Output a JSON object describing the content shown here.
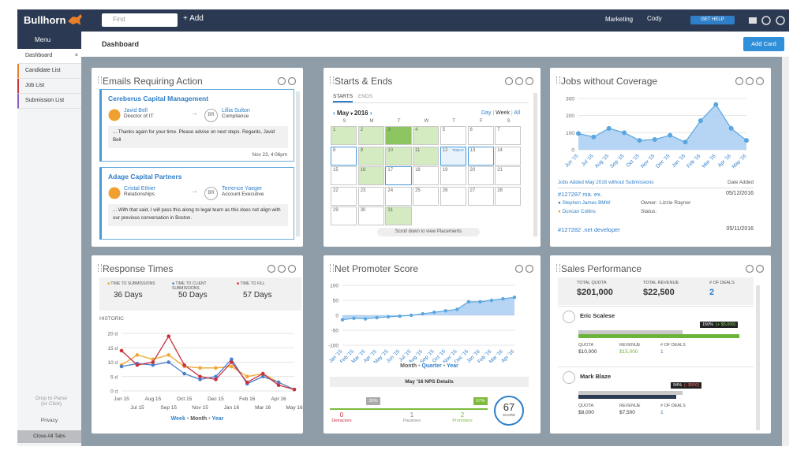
{
  "topbar": {
    "logo": "Bullhorn",
    "search_placeholder": "Find",
    "add": "Add",
    "menu": "Marketing",
    "user": "Cody",
    "help": "GET HELP"
  },
  "sidebar": {
    "menu": "Menu",
    "tabs": [
      "Dashboard",
      "Candidate List",
      "Job List",
      "Submission List"
    ],
    "drop": "Drop to Parse",
    "drop_hint": "(or Click)",
    "privacy": "Privacy",
    "close_tabs": "Close All Tabs"
  },
  "header": {
    "title": "Dashboard",
    "add_card": "Add Card"
  },
  "emails": {
    "title": "Emails Requiring Action",
    "items": [
      {
        "company": "Cereberus Capital Management",
        "from_name": "Javid Bell",
        "from_title": "Director of IT",
        "initials": "BR",
        "to_name": "Lillia Sulton",
        "to_title": "Compliance",
        "message": "... Thanks again for your time. Please advise on next steps. Regards, Javid Bell",
        "date": "Nov 23, 4:06pm"
      },
      {
        "company": "Adage Capital Partners",
        "from_name": "Cristal Ethier",
        "from_title": "Relationships",
        "initials": "BR",
        "to_name": "Terrence Yaeger",
        "to_title": "Account Executive",
        "message": "... With that said, I will pass this along to legal team as this does not align with our previous conversation in Boston."
      }
    ]
  },
  "starts_ends": {
    "title": "Starts & Ends",
    "tabs": [
      "STARTS",
      "ENDS"
    ],
    "month": "May",
    "year": 2016,
    "views": [
      "Day",
      "Week",
      "All"
    ],
    "weekdays": [
      "S",
      "M",
      "T",
      "W",
      "T",
      "F",
      "S"
    ],
    "today_label": "TODAY",
    "days": [
      {
        "day": 1,
        "state": "green"
      },
      {
        "day": 2,
        "state": "green"
      },
      {
        "day": 3,
        "state": "dark"
      },
      {
        "day": 4,
        "state": "green"
      },
      {
        "day": 5,
        "state": "plain"
      },
      {
        "day": 6,
        "state": "plain"
      },
      {
        "day": 7,
        "state": "plain"
      },
      {
        "day": 8,
        "state": "outline"
      },
      {
        "day": 9,
        "state": "green"
      },
      {
        "day": 10,
        "state": "green"
      },
      {
        "day": 11,
        "state": "green"
      },
      {
        "day": 12,
        "state": "today"
      },
      {
        "day": 13,
        "state": "outline"
      },
      {
        "day": 14,
        "state": "plain"
      },
      {
        "day": 15,
        "state": "plain"
      },
      {
        "day": 16,
        "state": "green"
      },
      {
        "day": 17,
        "state": "outline"
      },
      {
        "day": 18,
        "state": "plain"
      },
      {
        "day": 19,
        "state": "plain"
      },
      {
        "day": 20,
        "state": "plain"
      },
      {
        "day": 21,
        "state": "plain"
      },
      {
        "day": 22,
        "state": "plain"
      },
      {
        "day": 23,
        "state": "plain"
      },
      {
        "day": 24,
        "state": "plain"
      },
      {
        "day": 25,
        "state": "plain"
      },
      {
        "day": 26,
        "state": "plain"
      },
      {
        "day": 27,
        "state": "plain"
      },
      {
        "day": 28,
        "state": "plain"
      },
      {
        "day": 29,
        "state": "plain"
      },
      {
        "day": 30,
        "state": "plain"
      },
      {
        "day": 31,
        "state": "green"
      }
    ],
    "footer": "Scroll down to view Placements"
  },
  "jobs": {
    "title": "Jobs without Coverage",
    "chart": {
      "type": "line",
      "categories": [
        "Jun '15",
        "Jul '15",
        "Aug '15",
        "Sep '15",
        "Oct '15",
        "Nov '15",
        "Dec '15",
        "Jan '16",
        "Feb '16",
        "Mar '16",
        "Apr '16",
        "May '16"
      ],
      "values": [
        95,
        75,
        125,
        100,
        55,
        60,
        85,
        45,
        170,
        265,
        125,
        55
      ],
      "color": "#5aa6e0",
      "ylim": [
        0,
        300
      ],
      "yticks": [
        0,
        100,
        200,
        300
      ],
      "grid": true
    },
    "list_title": "Jobs Added May 2016 without Submissions",
    "date_header": "Date Added",
    "jobs": [
      {
        "id": "#127287 ma. ex.",
        "date": "05/12/2016",
        "contacts": [
          "Stephen James BMW",
          "Duncan Collins"
        ],
        "owner_label": "Owner:",
        "owner": "Lizzie Rayner",
        "status_label": "Status:"
      },
      {
        "id": "#127282 .net developer",
        "date": "05/11/2016"
      }
    ]
  },
  "response": {
    "title": "Response Times",
    "historic": "HISTORIC",
    "chart": {
      "type": "line",
      "categories": [
        "Jun 15",
        "Jul 15",
        "Aug 15",
        "Sep 15",
        "Oct 15",
        "Nov 15",
        "Dec 15",
        "Jan 16",
        "Feb 16",
        "Mar 16",
        "Apr 16",
        "May 16"
      ],
      "series": [
        {
          "name": "TIME TO SUBMISSIONS",
          "summary": "36 Days",
          "color": "#f0a830",
          "values": [
            9,
            12.5,
            11,
            12.5,
            8.5,
            8,
            8,
            8.5,
            5,
            6,
            3,
            0.5
          ]
        },
        {
          "name": "TIME TO CLIENT SUBMISSIONS",
          "summary": "50 Days",
          "color": "#4a7fd0",
          "values": [
            8.5,
            9.5,
            9,
            10,
            6,
            4,
            5,
            11,
            2.5,
            5,
            3,
            0.5
          ]
        },
        {
          "name": "TIME TO FILL",
          "summary": "57 Days",
          "color": "#c8323c",
          "values": [
            14,
            9,
            10,
            19,
            9,
            5,
            4,
            10,
            3,
            6,
            2,
            0.5
          ]
        }
      ],
      "ylim": [
        0,
        20
      ],
      "yticks": [
        {
          "value": 0,
          "label": "0 d"
        },
        {
          "value": 5,
          "label": "5 d"
        },
        {
          "value": 10,
          "label": "10 d"
        },
        {
          "value": 15,
          "label": "15 d"
        },
        {
          "value": 20,
          "label": "20 d"
        }
      ],
      "grid": true
    },
    "periods": [
      "Week",
      "Month",
      "Year"
    ]
  },
  "nps": {
    "title": "Net Promoter Score",
    "chart": {
      "type": "line",
      "categories": [
        "Jan '15",
        "Feb '15",
        "Mar '15",
        "Apr '15",
        "May '15",
        "Jun '15",
        "Jul '15",
        "Aug '15",
        "Sep '15",
        "Oct '15",
        "Nov '15",
        "Dec '15",
        "Jan '16",
        "Feb '16",
        "Mar '16",
        "Apr '16"
      ],
      "values": [
        -15,
        -10,
        -12,
        -8,
        -5,
        -3,
        0,
        5,
        10,
        15,
        20,
        45,
        45,
        50,
        55,
        60
      ],
      "color": "#5aa6e0",
      "ylim": [
        -100,
        100
      ],
      "yticks": [
        -100,
        -50,
        0,
        50,
        100
      ],
      "grid": true
    },
    "periods": [
      "Month",
      "Quarter",
      "Year"
    ],
    "details_title": "May '16 NPS Details",
    "passive_pct": "33%",
    "promoter_pct": "67%",
    "groups": [
      {
        "count": 0,
        "label": "Detractors"
      },
      {
        "count": 1,
        "label": "Passives"
      },
      {
        "count": 2,
        "label": "Promoters"
      }
    ],
    "score": 67,
    "score_label": "SCORE"
  },
  "sales": {
    "title": "Sales Performance",
    "totals": [
      {
        "label": "TOTAL QUOTA",
        "value": "$201,000"
      },
      {
        "label": "TOTAL REVENUE",
        "value": "$22,500"
      },
      {
        "label": "# OF DEALS",
        "value": "2"
      }
    ],
    "people": [
      {
        "name": "Eric Scalese",
        "pct": "150%",
        "diff": "(+ $5,000)",
        "stats": [
          {
            "label": "QUOTA",
            "value": "$10,000"
          },
          {
            "label": "REVENUE",
            "value": "$15,000"
          },
          {
            "label": "# OF DEALS",
            "value": "1"
          }
        ]
      },
      {
        "name": "Mark Blaze",
        "pct": "94%",
        "diff": "(- $500)",
        "stats": [
          {
            "label": "QUOTA",
            "value": "$8,000"
          },
          {
            "label": "REVENUE",
            "value": "$7,500"
          },
          {
            "label": "# OF DEALS",
            "value": "1"
          }
        ]
      }
    ]
  }
}
